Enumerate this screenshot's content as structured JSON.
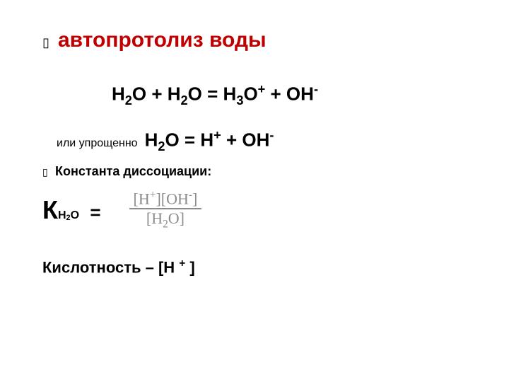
{
  "title": {
    "text": "автопротолиз воды",
    "color": "#c00000",
    "fontsize": 30,
    "fontweight": "bold"
  },
  "equation1": {
    "parts": {
      "lhs1": "Н",
      "sub1": "2",
      "lhs2": "О + Н",
      "sub2": "2",
      "lhs3": "О = Н",
      "sub3": "3",
      "lhs4": "О",
      "sup1": "+",
      "lhs5": " + ОН",
      "sup2": "-"
    },
    "fontsize": 26,
    "fontweight": "bold",
    "color": "#000000"
  },
  "simplified_label": {
    "text": "или упрощенно",
    "fontsize": 16,
    "color": "#000000"
  },
  "equation2": {
    "parts": {
      "a": "Н",
      "sub1": "2",
      "b": "О  = Н",
      "sup1": "+",
      "c": " + ОН",
      "sup2": "-"
    },
    "fontsize": 26,
    "fontweight": "bold",
    "color": "#000000"
  },
  "dissoc_label": {
    "text": "Константа диссоциации:",
    "fontsize": 18,
    "fontweight": "bold",
    "color": "#000000"
  },
  "k_expr": {
    "K": "К",
    "K_sub_h": "Н",
    "K_sub_2": "2",
    "K_sub_o": "О",
    "eq": " =",
    "K_fontsize": 36,
    "sub_fontsize": 16,
    "color": "#000000"
  },
  "fraction": {
    "numerator": {
      "l": "[H",
      "sup1": "+",
      "m": "][OH",
      "sup2": "-",
      "r": "]"
    },
    "denominator": {
      "l": "[H",
      "sub1": "2",
      "r": "O]"
    },
    "color": "#8c8c8c",
    "fontsize": 22,
    "fontfamily": "Times New Roman"
  },
  "acidity": {
    "label": "Кислотность – ",
    "expr_l": "[Н ",
    "expr_sup": "+",
    "expr_r": " ]",
    "fontsize": 22,
    "fontweight": "bold",
    "color": "#000000"
  },
  "bullet_glyph": "▯"
}
